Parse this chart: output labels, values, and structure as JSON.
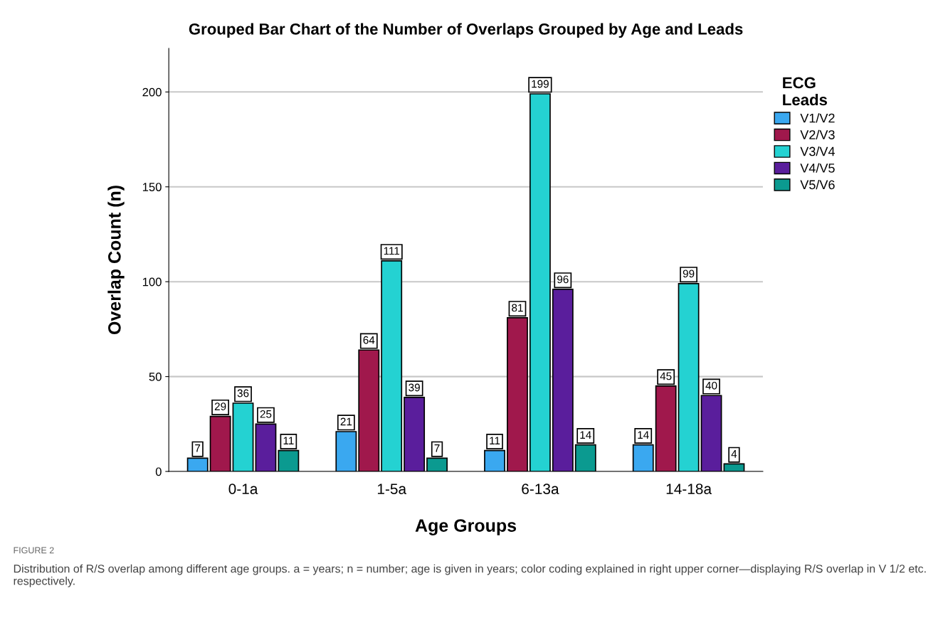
{
  "chart_data": {
    "type": "bar",
    "title": "Grouped Bar Chart of the Number of Overlaps Grouped by Age and Leads",
    "xlabel": "Age Groups",
    "ylabel": "Overlap Count (n)",
    "legend_title": "ECG\nLeads",
    "categories": [
      "0-1a",
      "1-5a",
      "6-13a",
      "14-18a"
    ],
    "series": [
      {
        "name": "V1/V2",
        "color": "#3aa8f0",
        "values": [
          7,
          21,
          11,
          14
        ]
      },
      {
        "name": "V2/V3",
        "color": "#a0184c",
        "values": [
          29,
          64,
          81,
          45
        ]
      },
      {
        "name": "V3/V4",
        "color": "#24d2d2",
        "values": [
          36,
          111,
          199,
          99
        ]
      },
      {
        "name": "V4/V5",
        "color": "#5a1e9c",
        "values": [
          25,
          39,
          96,
          40
        ]
      },
      {
        "name": "V5/V6",
        "color": "#0b9a90",
        "values": [
          11,
          7,
          14,
          4
        ]
      }
    ],
    "ylim": [
      0,
      223
    ],
    "yticks": [
      0,
      50,
      100,
      150,
      200
    ],
    "grid": "y",
    "legend": "right",
    "data_labels": true,
    "annotations": [
      "FIGURE 2",
      "Distribution of R/S overlap among different age groups. a = years; n = number; age is given in years; color coding explained in right upper corner—displaying R/S overlap in V 1/2 etc. respectively."
    ]
  }
}
